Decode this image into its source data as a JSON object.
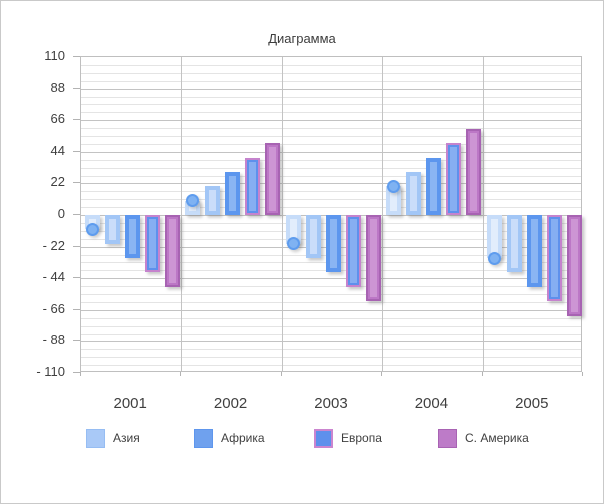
{
  "window": {
    "background": "#ffffff",
    "border_color": "#c9c9c9"
  },
  "chart_data": {
    "type": "bar",
    "title": "Диаграмма",
    "xlabel": "",
    "ylabel": "",
    "categories": [
      "2001",
      "2002",
      "2003",
      "2004",
      "2005"
    ],
    "series": [
      {
        "name": "",
        "in_legend": false,
        "marker": "circle",
        "values": [
          -10,
          10,
          -20,
          20,
          -30
        ],
        "colors": {
          "border": "#c6dcf9",
          "fill": "#c6dcf9",
          "core": "#e2edfc",
          "marker_fill": "#7fb2f2",
          "marker_ring": "#5e9cee"
        }
      },
      {
        "name": "Азия",
        "in_legend": true,
        "values": [
          -20,
          20,
          -30,
          30,
          -40
        ],
        "colors": {
          "border": "#a2c6f6",
          "fill": "#a2c6f6",
          "core": "#caddfa"
        },
        "swatch": {
          "fill": "#a9c9f7",
          "border": "#96bdf3"
        }
      },
      {
        "name": "Африка",
        "in_legend": true,
        "values": [
          -30,
          30,
          -40,
          40,
          -50
        ],
        "colors": {
          "border": "#5c96ee",
          "fill": "#5c96ee",
          "core": "#8ab5f3"
        },
        "swatch": {
          "fill": "#6fa1ee",
          "border": "#5e96ed"
        }
      },
      {
        "name": "Европа",
        "in_legend": true,
        "values": [
          -40,
          40,
          -50,
          50,
          -60
        ],
        "colors": {
          "border": "#c583cd",
          "fill": "#5e90ec",
          "core": "#86aef2"
        },
        "swatch": {
          "fill": "#5e90ec",
          "border": "#cb85cf"
        }
      },
      {
        "name": "С. Америка",
        "in_legend": true,
        "values": [
          -50,
          50,
          -60,
          60,
          -70
        ],
        "colors": {
          "border": "#a763b2",
          "fill": "#bc77c6",
          "core": "#cd95d4"
        },
        "swatch": {
          "fill": "#bd7bc8",
          "border": "#a863b3"
        }
      }
    ],
    "y_axis": {
      "min": -110,
      "max": 110,
      "major_step": 22,
      "minor_divisions_per_major": 4,
      "tick_labels": [
        "110",
        "88",
        "66",
        "44",
        "22",
        "0",
        "- 22",
        "- 44",
        "- 66",
        "- 88",
        "- 110"
      ]
    },
    "grid": {
      "major_color": "#c3c3c3",
      "minor_color": "#e4e4e4",
      "vertical_separators": true
    },
    "legend": {
      "position": "bottom",
      "entries": [
        "Азия",
        "Африка",
        "Европа",
        "С. Америка"
      ]
    }
  }
}
